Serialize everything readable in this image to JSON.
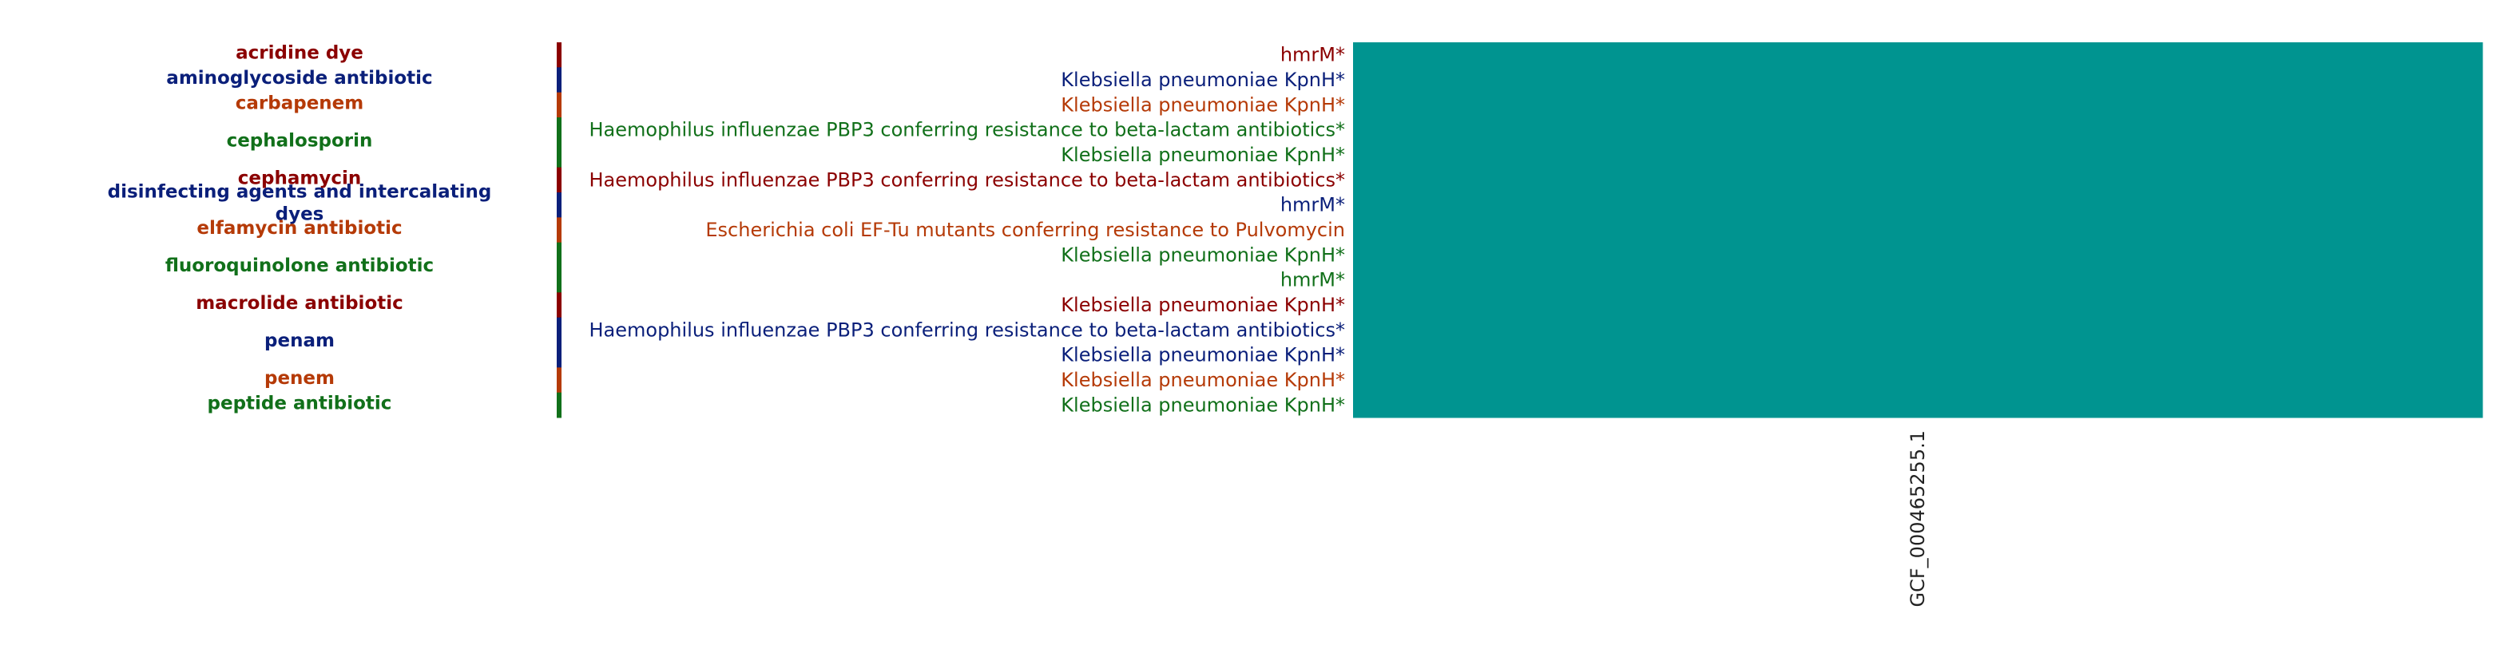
{
  "chart_data": {
    "type": "heatmap",
    "title": "",
    "xlabel": "",
    "ylabel": "",
    "samples": [
      "GCF_000465255.1"
    ],
    "cell_color": "#009490",
    "palette": {
      "red": "#8b0000",
      "blue": "#0a1f7a",
      "orange": "#b53a07",
      "green": "#11701a"
    },
    "drug_classes": [
      {
        "name": "acridine dye",
        "color": "#8b0000",
        "rows": 1
      },
      {
        "name": "aminoglycoside antibiotic",
        "color": "#0a1f7a",
        "rows": 1
      },
      {
        "name": "carbapenem",
        "color": "#b53a07",
        "rows": 1
      },
      {
        "name": "cephalosporin",
        "color": "#11701a",
        "rows": 2
      },
      {
        "name": "cephamycin",
        "color": "#8b0000",
        "rows": 1
      },
      {
        "name": "disinfecting agents and intercalating dyes",
        "label_lines": [
          "disinfecting agents and intercalating",
          "dyes"
        ],
        "color": "#0a1f7a",
        "rows": 1
      },
      {
        "name": "elfamycin antibiotic",
        "color": "#b53a07",
        "rows": 1
      },
      {
        "name": "fluoroquinolone antibiotic",
        "color": "#11701a",
        "rows": 2
      },
      {
        "name": "macrolide antibiotic",
        "color": "#8b0000",
        "rows": 1
      },
      {
        "name": "penam",
        "color": "#0a1f7a",
        "rows": 2
      },
      {
        "name": "penem",
        "color": "#b53a07",
        "rows": 1
      },
      {
        "name": "peptide antibiotic",
        "color": "#11701a",
        "rows": 1
      }
    ],
    "genes": [
      {
        "label": "hmrM*",
        "color": "#8b0000",
        "value": 1
      },
      {
        "label": "Klebsiella pneumoniae KpnH*",
        "color": "#0a1f7a",
        "value": 1
      },
      {
        "label": "Klebsiella pneumoniae KpnH*",
        "color": "#b53a07",
        "value": 1
      },
      {
        "label": "Haemophilus influenzae PBP3 conferring resistance to beta-lactam antibiotics*",
        "color": "#11701a",
        "value": 1
      },
      {
        "label": "Klebsiella pneumoniae KpnH*",
        "color": "#11701a",
        "value": 1
      },
      {
        "label": "Haemophilus influenzae PBP3 conferring resistance to beta-lactam antibiotics*",
        "color": "#8b0000",
        "value": 1
      },
      {
        "label": "hmrM*",
        "color": "#0a1f7a",
        "value": 1
      },
      {
        "label": "Escherichia coli EF-Tu mutants conferring resistance to Pulvomycin",
        "color": "#b53a07",
        "value": 1
      },
      {
        "label": "Klebsiella pneumoniae KpnH*",
        "color": "#11701a",
        "value": 1
      },
      {
        "label": "hmrM*",
        "color": "#11701a",
        "value": 1
      },
      {
        "label": "Klebsiella pneumoniae KpnH*",
        "color": "#8b0000",
        "value": 1
      },
      {
        "label": "Haemophilus influenzae PBP3 conferring resistance to beta-lactam antibiotics*",
        "color": "#0a1f7a",
        "value": 1
      },
      {
        "label": "Klebsiella pneumoniae KpnH*",
        "color": "#0a1f7a",
        "value": 1
      },
      {
        "label": "Klebsiella pneumoniae KpnH*",
        "color": "#b53a07",
        "value": 1
      },
      {
        "label": "Klebsiella pneumoniae KpnH*",
        "color": "#11701a",
        "value": 1
      }
    ]
  }
}
